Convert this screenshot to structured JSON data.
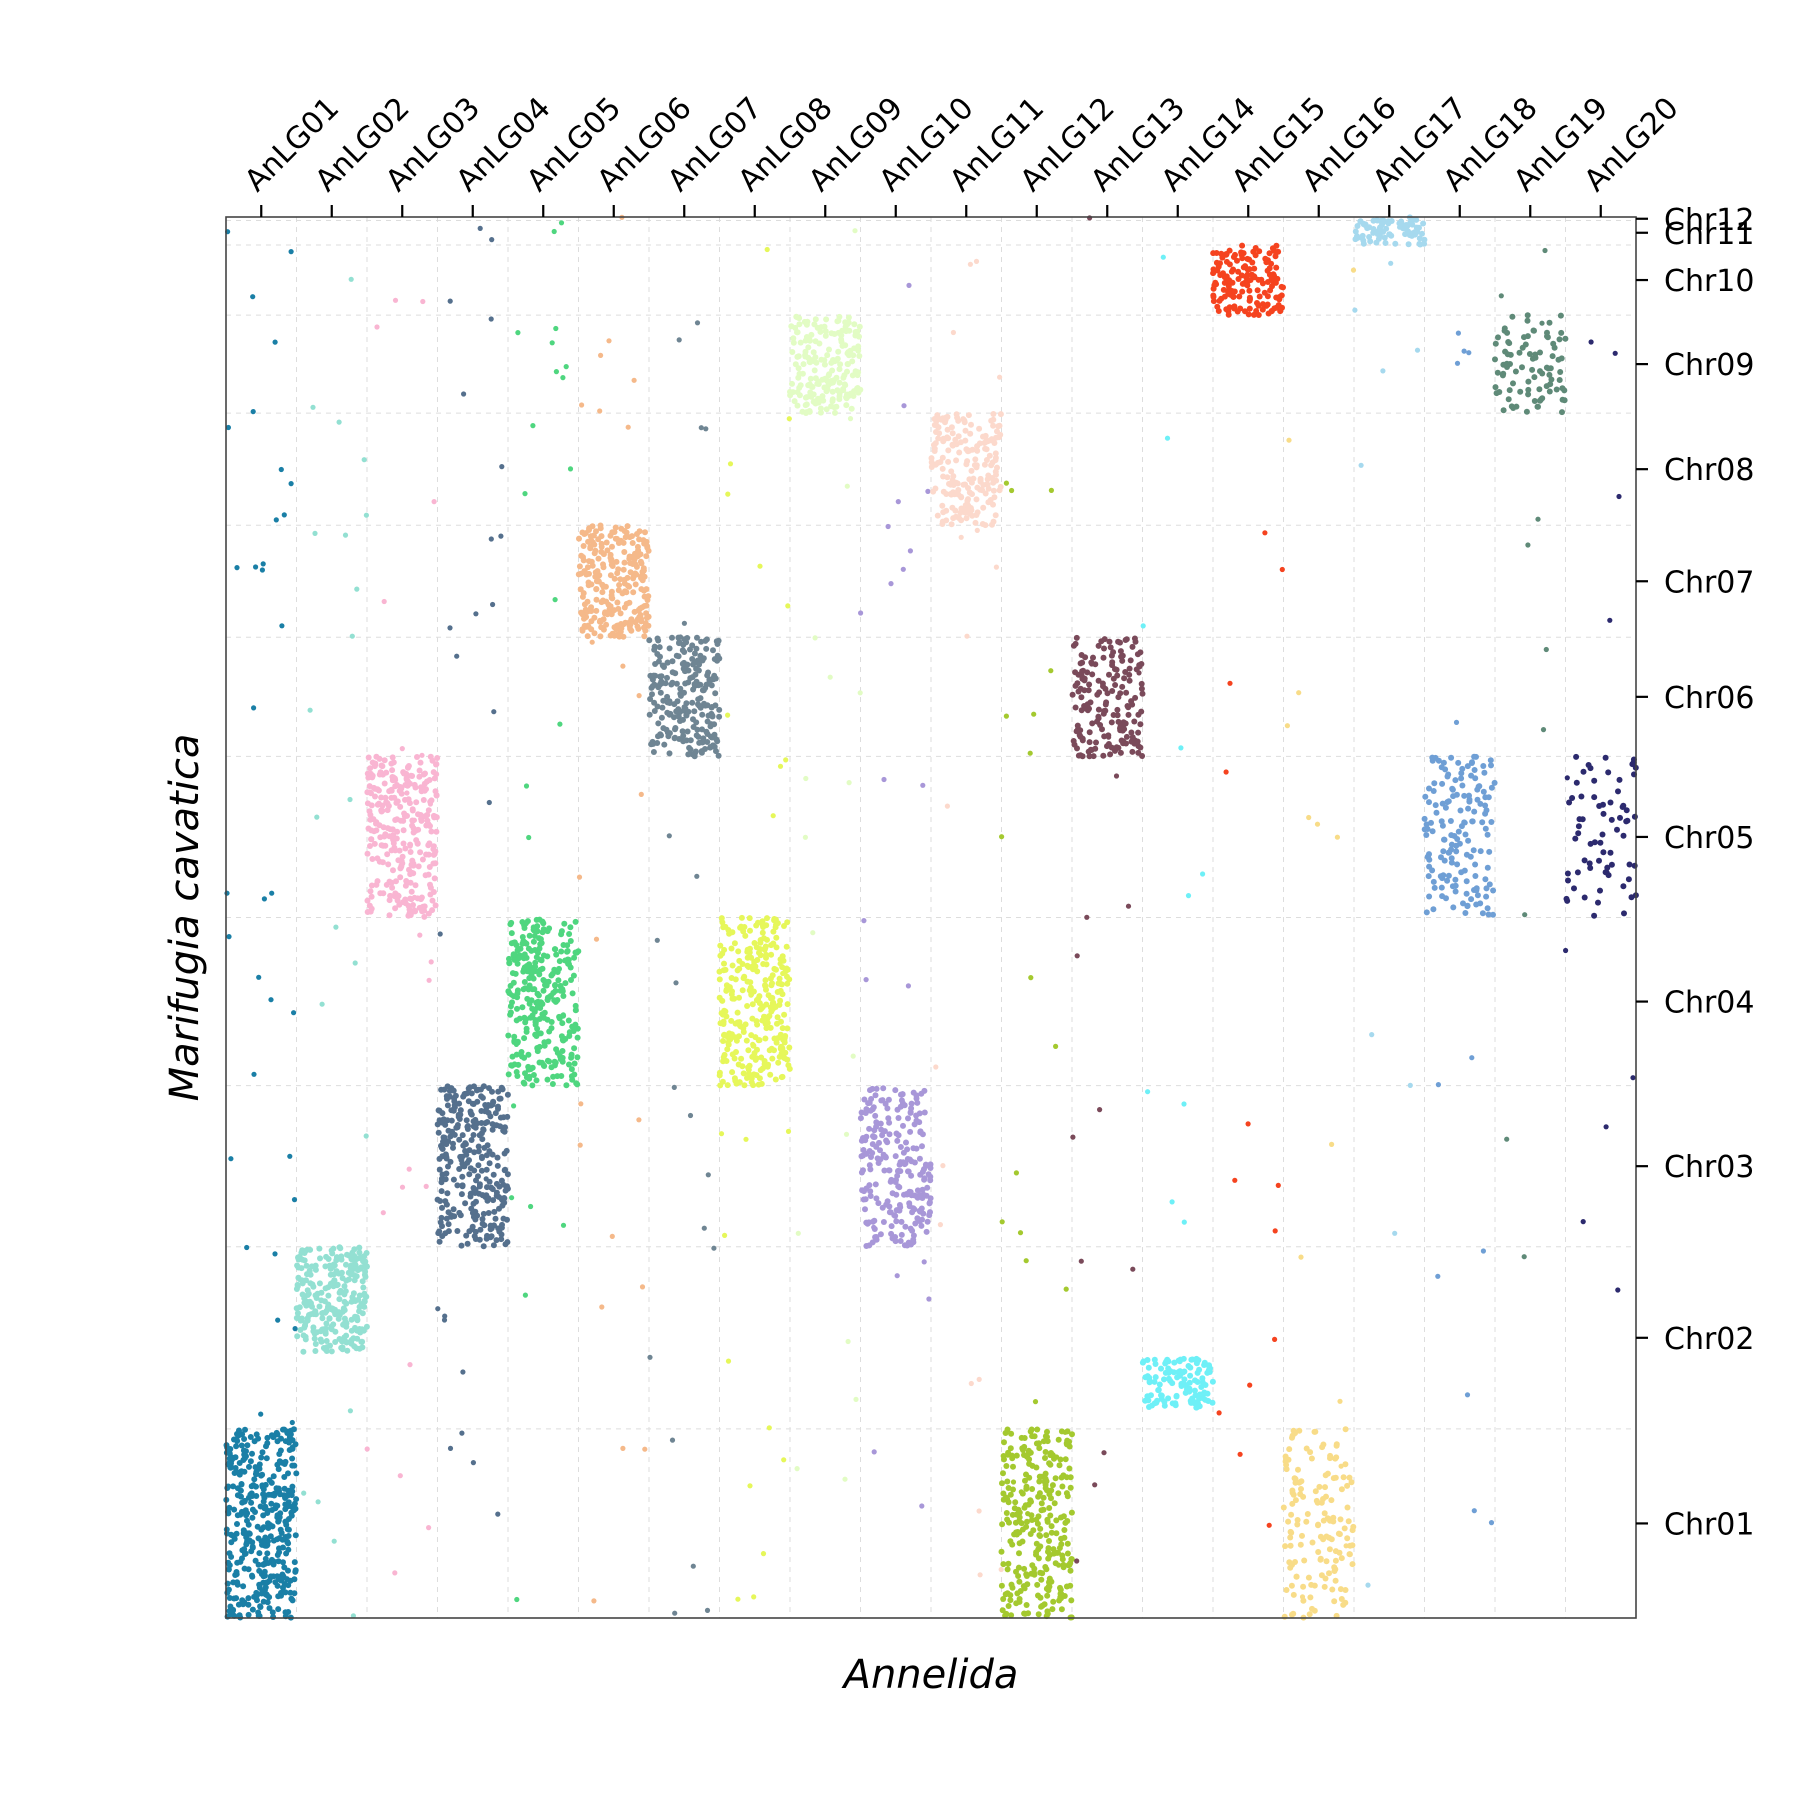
{
  "chart_data": {
    "type": "scatter",
    "xlabel": "Annelida",
    "ylabel": "Marifugia cavatica",
    "x_axis_position": "top",
    "y_axis_position": "right",
    "grid": true,
    "x_ticks": [
      "AnLG01",
      "AnLG02",
      "AnLG03",
      "AnLG04",
      "AnLG05",
      "AnLG06",
      "AnLG07",
      "AnLG08",
      "AnLG09",
      "AnLG10",
      "AnLG11",
      "AnLG12",
      "AnLG13",
      "AnLG14",
      "AnLG15",
      "AnLG16",
      "AnLG17",
      "AnLG18",
      "AnLG19",
      "AnLG20"
    ],
    "y_ticks": [
      "Chr01",
      "Chr02",
      "Chr03",
      "Chr04",
      "Chr05",
      "Chr06",
      "Chr07",
      "Chr08",
      "Chr09",
      "Chr10",
      "Chr11",
      "Chr12"
    ],
    "x_segments": [
      {
        "name": "AnLG01",
        "start": 0,
        "end": 1
      },
      {
        "name": "AnLG02",
        "start": 1,
        "end": 2
      },
      {
        "name": "AnLG03",
        "start": 2,
        "end": 3
      },
      {
        "name": "AnLG04",
        "start": 3,
        "end": 4
      },
      {
        "name": "AnLG05",
        "start": 4,
        "end": 5
      },
      {
        "name": "AnLG06",
        "start": 5,
        "end": 6
      },
      {
        "name": "AnLG07",
        "start": 6,
        "end": 7
      },
      {
        "name": "AnLG08",
        "start": 7,
        "end": 8
      },
      {
        "name": "AnLG09",
        "start": 8,
        "end": 9
      },
      {
        "name": "AnLG10",
        "start": 9,
        "end": 10
      },
      {
        "name": "AnLG11",
        "start": 10,
        "end": 11
      },
      {
        "name": "AnLG12",
        "start": 11,
        "end": 12
      },
      {
        "name": "AnLG13",
        "start": 12,
        "end": 13
      },
      {
        "name": "AnLG14",
        "start": 13,
        "end": 14
      },
      {
        "name": "AnLG15",
        "start": 14,
        "end": 15
      },
      {
        "name": "AnLG16",
        "start": 15,
        "end": 16
      },
      {
        "name": "AnLG17",
        "start": 16,
        "end": 17
      },
      {
        "name": "AnLG18",
        "start": 17,
        "end": 18
      },
      {
        "name": "AnLG19",
        "start": 18,
        "end": 19
      },
      {
        "name": "AnLG20",
        "start": 19,
        "end": 20
      }
    ],
    "y_segments": [
      {
        "name": "Chr01",
        "start": 0,
        "end": 2.7
      },
      {
        "name": "Chr02",
        "start": 2.7,
        "end": 5.3
      },
      {
        "name": "Chr03",
        "start": 5.3,
        "end": 7.6
      },
      {
        "name": "Chr04",
        "start": 7.6,
        "end": 10.0
      },
      {
        "name": "Chr05",
        "start": 10.0,
        "end": 12.3
      },
      {
        "name": "Chr06",
        "start": 12.3,
        "end": 14.0
      },
      {
        "name": "Chr07",
        "start": 14.0,
        "end": 15.6
      },
      {
        "name": "Chr08",
        "start": 15.6,
        "end": 17.2
      },
      {
        "name": "Chr09",
        "start": 17.2,
        "end": 18.6
      },
      {
        "name": "Chr10",
        "start": 18.6,
        "end": 19.6
      },
      {
        "name": "Chr11",
        "start": 19.6,
        "end": 19.95
      },
      {
        "name": "Chr12",
        "start": 19.95,
        "end": 20.0
      }
    ],
    "xlim": [
      0,
      20
    ],
    "ylim": [
      0,
      20
    ],
    "clusters": [
      {
        "alg": "AnLG01",
        "chr": "Chr01",
        "color": "#1a7fa6",
        "x": [
          0,
          1
        ],
        "y": [
          0,
          2.7
        ],
        "n": 400
      },
      {
        "alg": "AnLG02",
        "chr": "Chr02",
        "color": "#93e0d2",
        "x": [
          1,
          2
        ],
        "y": [
          3.8,
          5.3
        ],
        "n": 280
      },
      {
        "alg": "AnLG03",
        "chr": "Chr05",
        "color": "#f9b5d2",
        "x": [
          2,
          3
        ],
        "y": [
          10.0,
          12.3
        ],
        "n": 300
      },
      {
        "alg": "AnLG04",
        "chr": "Chr03",
        "color": "#55708d",
        "x": [
          3,
          4
        ],
        "y": [
          5.3,
          7.6
        ],
        "n": 300
      },
      {
        "alg": "AnLG05",
        "chr": "Chr04",
        "color": "#4fd67f",
        "x": [
          4,
          5
        ],
        "y": [
          7.6,
          10.0
        ],
        "n": 300
      },
      {
        "alg": "AnLG06",
        "chr": "Chr07",
        "color": "#f5b98a",
        "x": [
          5,
          6
        ],
        "y": [
          14.0,
          15.6
        ],
        "n": 260
      },
      {
        "alg": "AnLG07",
        "chr": "Chr06",
        "color": "#6f8593",
        "x": [
          6,
          7
        ],
        "y": [
          12.3,
          14.0
        ],
        "n": 240
      },
      {
        "alg": "AnLG08",
        "chr": "Chr04",
        "color": "#e6f75a",
        "x": [
          7,
          8
        ],
        "y": [
          7.6,
          10.0
        ],
        "n": 300
      },
      {
        "alg": "AnLG09",
        "chr": "Chr09",
        "color": "#e2fcc4",
        "x": [
          8,
          9
        ],
        "y": [
          17.2,
          18.6
        ],
        "n": 200
      },
      {
        "alg": "AnLG10",
        "chr": "Chr03",
        "color": "#a897d8",
        "x": [
          9,
          10
        ],
        "y": [
          5.3,
          7.6
        ],
        "n": 240
      },
      {
        "alg": "AnLG11",
        "chr": "Chr08",
        "color": "#fcd9cc",
        "x": [
          10,
          11
        ],
        "y": [
          15.6,
          17.2
        ],
        "n": 200
      },
      {
        "alg": "AnLG12",
        "chr": "Chr01",
        "color": "#a4c92f",
        "x": [
          11,
          12
        ],
        "y": [
          0,
          2.7
        ],
        "n": 280
      },
      {
        "alg": "AnLG13",
        "chr": "Chr06",
        "color": "#7a4a5a",
        "x": [
          12,
          13
        ],
        "y": [
          12.3,
          14.0
        ],
        "n": 180
      },
      {
        "alg": "AnLG14",
        "chr": "Chr02",
        "color": "#6ef0f7",
        "x": [
          13,
          14
        ],
        "y": [
          3.0,
          3.7
        ],
        "n": 120
      },
      {
        "alg": "AnLG15",
        "chr": "Chr10",
        "color": "#f5431f",
        "x": [
          14,
          15
        ],
        "y": [
          18.6,
          19.6
        ],
        "n": 160
      },
      {
        "alg": "AnLG16",
        "chr": "Chr01",
        "color": "#f8dc88",
        "x": [
          15,
          16
        ],
        "y": [
          0,
          2.7
        ],
        "n": 150
      },
      {
        "alg": "AnLG17",
        "chr": "Chr12",
        "color": "#a6d9ee",
        "x": [
          16,
          17
        ],
        "y": [
          19.6,
          20.0
        ],
        "n": 80
      },
      {
        "alg": "AnLG18",
        "chr": "Chr05",
        "color": "#6f9fd5",
        "x": [
          17,
          18
        ],
        "y": [
          10.0,
          12.3
        ],
        "n": 160
      },
      {
        "alg": "AnLG19",
        "chr": "Chr09",
        "color": "#5f8a78",
        "x": [
          18,
          19
        ],
        "y": [
          17.2,
          18.6
        ],
        "n": 90
      },
      {
        "alg": "AnLG20",
        "chr": "Chr05",
        "color": "#2c2a6e",
        "x": [
          19,
          20
        ],
        "y": [
          10.0,
          12.3
        ],
        "n": 70
      }
    ]
  }
}
